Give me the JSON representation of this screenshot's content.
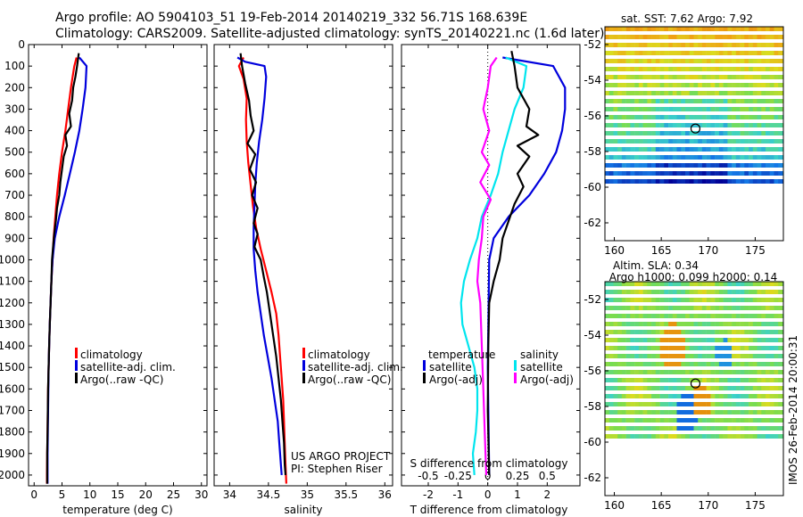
{
  "header": {
    "title_line1": "Argo profile: AO 5904103_51 19-Feb-2014 20140219_332 56.71S 168.639E",
    "title_line2": "Climatology: CARS2009. Satellite-adjusted climatology: synTS_20140221.nc (1.6d later)"
  },
  "colors": {
    "climatology": "#ff0000",
    "satellite": "#0000dd",
    "argo": "#000000",
    "satellite_salinity": "#00e5ee",
    "argo_salinity": "#ff00ff"
  },
  "chart_data": [
    {
      "id": "temperature",
      "type": "line",
      "title": "",
      "xlabel": "temperature (deg C)",
      "ylabel": "",
      "xlim": [
        -1,
        31
      ],
      "ylim": [
        2050,
        0
      ],
      "xticks": [
        0,
        5,
        10,
        15,
        20,
        25,
        30
      ],
      "yticks": [
        0,
        100,
        200,
        300,
        400,
        500,
        600,
        700,
        800,
        900,
        1000,
        1100,
        1200,
        1300,
        1400,
        1500,
        1600,
        1700,
        1800,
        1900,
        2000
      ],
      "legend": [
        "climatology",
        "satellite-adj. clim.",
        "Argo(..raw -QC)"
      ],
      "series": [
        {
          "name": "climatology",
          "color_key": "climatology",
          "points": [
            [
              7.6,
              60
            ],
            [
              7.2,
              100
            ],
            [
              6.6,
              200
            ],
            [
              6.1,
              300
            ],
            [
              5.6,
              400
            ],
            [
              5.0,
              500
            ],
            [
              4.5,
              600
            ],
            [
              4.1,
              700
            ],
            [
              3.8,
              800
            ],
            [
              3.5,
              900
            ],
            [
              3.3,
              1000
            ],
            [
              3.1,
              1100
            ],
            [
              2.95,
              1200
            ],
            [
              2.8,
              1300
            ],
            [
              2.7,
              1400
            ],
            [
              2.6,
              1500
            ],
            [
              2.5,
              1600
            ],
            [
              2.45,
              1700
            ],
            [
              2.4,
              1800
            ],
            [
              2.35,
              1900
            ],
            [
              2.3,
              2000
            ],
            [
              2.3,
              2040
            ]
          ]
        },
        {
          "name": "satellite-adj. clim.",
          "color_key": "satellite",
          "points": [
            [
              8.1,
              60
            ],
            [
              9.4,
              100
            ],
            [
              9.2,
              200
            ],
            [
              8.7,
              300
            ],
            [
              8.1,
              400
            ],
            [
              7.3,
              500
            ],
            [
              6.4,
              600
            ],
            [
              5.5,
              700
            ],
            [
              4.5,
              800
            ],
            [
              3.7,
              900
            ],
            [
              3.3,
              1000
            ],
            [
              3.1,
              1100
            ],
            [
              2.95,
              1200
            ],
            [
              2.8,
              1300
            ],
            [
              2.7,
              1400
            ],
            [
              2.6,
              1500
            ],
            [
              2.55,
              1600
            ],
            [
              2.5,
              1700
            ],
            [
              2.45,
              1800
            ],
            [
              2.4,
              1900
            ],
            [
              2.4,
              2000
            ],
            [
              2.4,
              2040
            ]
          ]
        },
        {
          "name": "Argo(..raw -QC)",
          "color_key": "argo",
          "points": [
            [
              8.0,
              40
            ],
            [
              7.7,
              100
            ],
            [
              7.4,
              150
            ],
            [
              7.0,
              200
            ],
            [
              6.8,
              260
            ],
            [
              6.3,
              320
            ],
            [
              6.6,
              380
            ],
            [
              5.6,
              420
            ],
            [
              5.9,
              470
            ],
            [
              5.3,
              520
            ],
            [
              5.0,
              580
            ],
            [
              4.7,
              640
            ],
            [
              4.5,
              700
            ],
            [
              4.1,
              760
            ],
            [
              3.9,
              820
            ],
            [
              3.6,
              880
            ],
            [
              3.4,
              940
            ],
            [
              3.2,
              1000
            ],
            [
              3.1,
              1100
            ],
            [
              2.95,
              1200
            ],
            [
              2.8,
              1300
            ],
            [
              2.7,
              1400
            ],
            [
              2.6,
              1500
            ],
            [
              2.5,
              1600
            ],
            [
              2.45,
              1700
            ],
            [
              2.4,
              1800
            ],
            [
              2.35,
              1900
            ],
            [
              2.35,
              2000
            ],
            [
              2.35,
              2040
            ]
          ]
        }
      ]
    },
    {
      "id": "salinity",
      "type": "line",
      "title": "",
      "xlabel": "salinity",
      "ylabel": "",
      "xlim": [
        33.8,
        36.1
      ],
      "ylim": [
        2050,
        0
      ],
      "xticks": [
        34,
        34.5,
        35,
        35.5,
        36
      ],
      "legend": [
        "climatology",
        "satellite-adj. clim.",
        "Argo(..raw -QC)"
      ],
      "annotations": [
        "US ARGO PROJECT",
        "PI: Stephen Riser"
      ],
      "series": [
        {
          "name": "climatology",
          "color_key": "climatology",
          "points": [
            [
              34.18,
              60
            ],
            [
              34.12,
              100
            ],
            [
              34.18,
              160
            ],
            [
              34.22,
              250
            ],
            [
              34.21,
              350
            ],
            [
              34.22,
              450
            ],
            [
              34.24,
              550
            ],
            [
              34.27,
              650
            ],
            [
              34.3,
              750
            ],
            [
              34.34,
              850
            ],
            [
              34.4,
              950
            ],
            [
              34.47,
              1050
            ],
            [
              34.54,
              1150
            ],
            [
              34.6,
              1250
            ],
            [
              34.63,
              1350
            ],
            [
              34.65,
              1450
            ],
            [
              34.67,
              1550
            ],
            [
              34.69,
              1650
            ],
            [
              34.7,
              1750
            ],
            [
              34.71,
              1850
            ],
            [
              34.72,
              1950
            ],
            [
              34.73,
              2040
            ]
          ]
        },
        {
          "name": "satellite-adj. clim.",
          "color_key": "satellite",
          "points": [
            [
              34.1,
              60
            ],
            [
              34.2,
              80
            ],
            [
              34.45,
              100
            ],
            [
              34.47,
              150
            ],
            [
              34.45,
              250
            ],
            [
              34.42,
              350
            ],
            [
              34.38,
              450
            ],
            [
              34.35,
              550
            ],
            [
              34.33,
              650
            ],
            [
              34.32,
              750
            ],
            [
              34.31,
              850
            ],
            [
              34.31,
              950
            ],
            [
              34.33,
              1050
            ],
            [
              34.36,
              1150
            ],
            [
              34.4,
              1250
            ],
            [
              34.44,
              1350
            ],
            [
              34.49,
              1450
            ],
            [
              34.54,
              1550
            ],
            [
              34.58,
              1650
            ],
            [
              34.62,
              1750
            ],
            [
              34.64,
              1850
            ],
            [
              34.66,
              1950
            ],
            [
              34.67,
              2000
            ]
          ]
        },
        {
          "name": "Argo(..raw -QC)",
          "color_key": "argo",
          "points": [
            [
              34.14,
              40
            ],
            [
              34.16,
              100
            ],
            [
              34.2,
              180
            ],
            [
              34.25,
              260
            ],
            [
              34.27,
              330
            ],
            [
              34.31,
              400
            ],
            [
              34.23,
              460
            ],
            [
              34.33,
              510
            ],
            [
              34.26,
              580
            ],
            [
              34.34,
              640
            ],
            [
              34.29,
              700
            ],
            [
              34.36,
              760
            ],
            [
              34.31,
              830
            ],
            [
              34.36,
              880
            ],
            [
              34.32,
              940
            ],
            [
              34.4,
              1000
            ],
            [
              34.44,
              1080
            ],
            [
              34.48,
              1150
            ],
            [
              34.52,
              1250
            ],
            [
              34.56,
              1350
            ],
            [
              34.6,
              1450
            ],
            [
              34.63,
              1550
            ],
            [
              34.66,
              1650
            ],
            [
              34.68,
              1750
            ],
            [
              34.7,
              1850
            ],
            [
              34.71,
              1950
            ],
            [
              34.72,
              2000
            ]
          ]
        }
      ]
    },
    {
      "id": "difference",
      "type": "line",
      "title": "",
      "xlabel": "T difference from climatology",
      "xlabel_top": "S difference from climatology",
      "ylabel": "",
      "xlim": [
        -2.9,
        3.1
      ],
      "ylim": [
        2050,
        0
      ],
      "xticks": [
        -2,
        -1,
        0,
        1,
        2
      ],
      "s_ticks": [
        {
          "label": "-0.5",
          "t": -2
        },
        {
          "label": "-0.25",
          "t": -1
        },
        {
          "label": "0",
          "t": 0
        },
        {
          "label": "0.25",
          "t": 1
        },
        {
          "label": "0.5",
          "t": 2
        }
      ],
      "legend_temperature": "temperature",
      "legend_salinity": "salinity",
      "legend_labels": [
        "satellite",
        "Argo(-adj)",
        "satellite",
        "Argo(-adj)"
      ],
      "series": [
        {
          "name": "temperature satellite",
          "color_key": "satellite",
          "points": [
            [
              0.5,
              60
            ],
            [
              2.2,
              100
            ],
            [
              2.6,
              200
            ],
            [
              2.6,
              300
            ],
            [
              2.5,
              400
            ],
            [
              2.3,
              500
            ],
            [
              1.9,
              600
            ],
            [
              1.4,
              700
            ],
            [
              0.7,
              800
            ],
            [
              0.2,
              900
            ],
            [
              0.05,
              1000
            ],
            [
              0.0,
              1500
            ],
            [
              0.05,
              2000
            ]
          ]
        },
        {
          "name": "salinity satellite",
          "color_key": "satellite_salinity",
          "points": [
            [
              0.6,
              60
            ],
            [
              1.3,
              100
            ],
            [
              1.2,
              200
            ],
            [
              0.9,
              300
            ],
            [
              0.7,
              400
            ],
            [
              0.5,
              500
            ],
            [
              0.35,
              600
            ],
            [
              0.1,
              700
            ],
            [
              -0.2,
              800
            ],
            [
              -0.35,
              900
            ],
            [
              -0.6,
              1000
            ],
            [
              -0.8,
              1100
            ],
            [
              -0.9,
              1200
            ],
            [
              -0.85,
              1300
            ],
            [
              -0.65,
              1400
            ],
            [
              -0.45,
              1500
            ],
            [
              -0.35,
              1600
            ],
            [
              -0.35,
              1700
            ],
            [
              -0.4,
              1800
            ],
            [
              -0.5,
              1900
            ],
            [
              -0.45,
              2000
            ]
          ]
        },
        {
          "name": "temperature Argo",
          "color_key": "argo",
          "points": [
            [
              0.8,
              30
            ],
            [
              0.9,
              100
            ],
            [
              1.0,
              200
            ],
            [
              1.4,
              300
            ],
            [
              1.3,
              380
            ],
            [
              1.7,
              420
            ],
            [
              1.0,
              470
            ],
            [
              1.4,
              520
            ],
            [
              1.0,
              600
            ],
            [
              1.2,
              660
            ],
            [
              0.9,
              740
            ],
            [
              0.7,
              820
            ],
            [
              0.5,
              900
            ],
            [
              0.4,
              1000
            ],
            [
              0.2,
              1100
            ],
            [
              0.05,
              1200
            ],
            [
              0.02,
              1400
            ],
            [
              0.0,
              1700
            ],
            [
              0.05,
              2000
            ]
          ]
        },
        {
          "name": "salinity Argo",
          "color_key": "argo_salinity",
          "points": [
            [
              0.3,
              60
            ],
            [
              0.1,
              100
            ],
            [
              0.0,
              200
            ],
            [
              -0.15,
              300
            ],
            [
              0.05,
              400
            ],
            [
              -0.2,
              500
            ],
            [
              0.05,
              560
            ],
            [
              -0.25,
              640
            ],
            [
              0.1,
              720
            ],
            [
              -0.15,
              800
            ],
            [
              -0.2,
              900
            ],
            [
              -0.3,
              1000
            ],
            [
              -0.35,
              1100
            ],
            [
              -0.25,
              1200
            ],
            [
              -0.2,
              1400
            ],
            [
              -0.15,
              1600
            ],
            [
              -0.1,
              1800
            ],
            [
              -0.05,
              2000
            ]
          ]
        }
      ]
    },
    {
      "id": "sst-map",
      "type": "heatmap",
      "title": "sat. SST: 7.62 Argo: 7.92",
      "xlim": [
        159,
        178
      ],
      "ylim": [
        -63,
        -51
      ],
      "xticks": [
        160,
        165,
        170,
        175
      ],
      "yticks": [
        -52,
        -54,
        -56,
        -58,
        -60,
        -62
      ],
      "argo_position": {
        "lon": 168.639,
        "lat": -56.71
      }
    },
    {
      "id": "sla-map",
      "type": "heatmap",
      "title": "Altim. SLA: 0.34",
      "subtitle": "Argo h1000: 0.099 h2000: 0.14",
      "xlim": [
        159,
        178
      ],
      "ylim": [
        -63,
        -51
      ],
      "xticks": [
        160,
        165,
        170,
        175
      ],
      "yticks": [
        -52,
        -54,
        -56,
        -58,
        -60,
        -62
      ],
      "argo_position": {
        "lon": 168.639,
        "lat": -56.71
      }
    }
  ],
  "side_label": "IMOS 26-Feb-2014 20:00:31"
}
